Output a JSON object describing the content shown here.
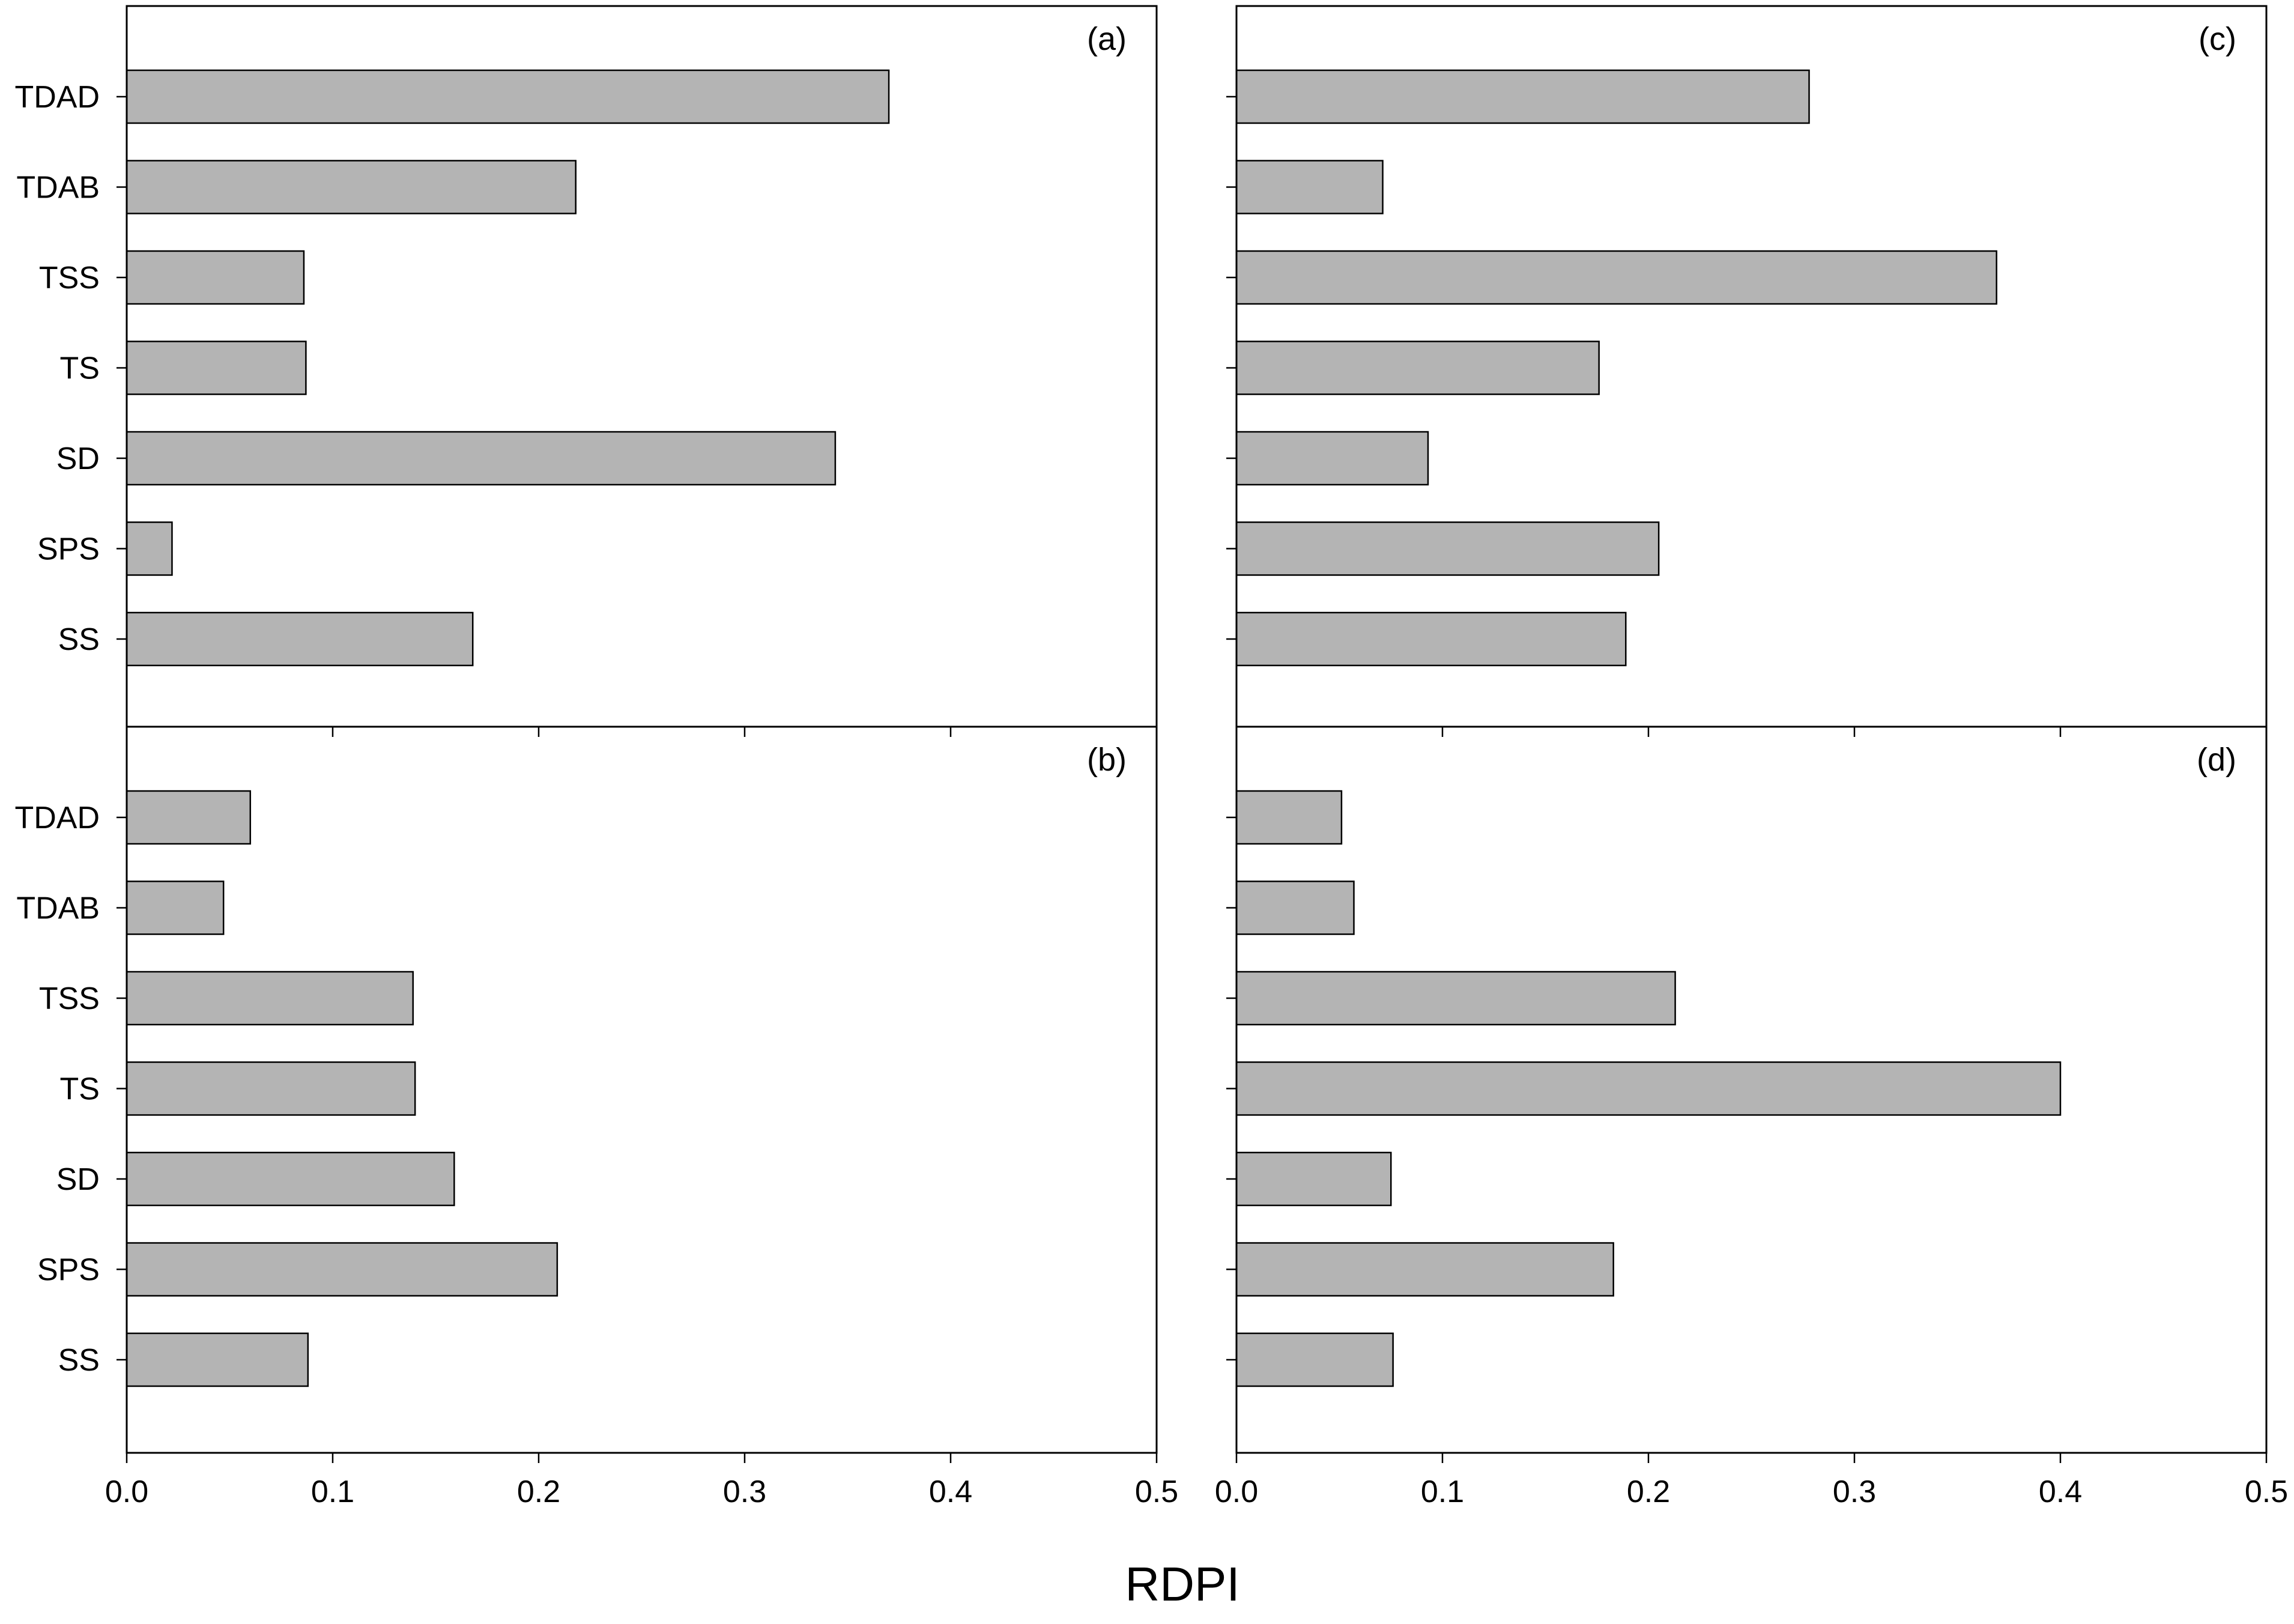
{
  "chart_data": {
    "type": "bar",
    "orientation": "horizontal",
    "xlabel": "RDPI",
    "xlim": [
      0,
      0.5
    ],
    "xticks": [
      "0.0",
      "0.1",
      "0.2",
      "0.3",
      "0.4",
      "0.5"
    ],
    "bar_color": "#b4b4b4",
    "grid": false,
    "panels": [
      {
        "label": "(a)",
        "position": "top-left",
        "categories": [
          "TDAD",
          "TDAB",
          "TSS",
          "TS",
          "SD",
          "SPS",
          "SS"
        ],
        "values": [
          0.37,
          0.218,
          0.086,
          0.087,
          0.344,
          0.022,
          0.168
        ]
      },
      {
        "label": "(c)",
        "position": "top-right",
        "categories": [
          "TDAD",
          "TDAB",
          "TSS",
          "TS",
          "SD",
          "SPS",
          "SS"
        ],
        "values": [
          0.278,
          0.071,
          0.369,
          0.176,
          0.093,
          0.205,
          0.189
        ]
      },
      {
        "label": "(b)",
        "position": "bottom-left",
        "categories": [
          "TDAD",
          "TDAB",
          "TSS",
          "TS",
          "SD",
          "SPS",
          "SS"
        ],
        "values": [
          0.06,
          0.047,
          0.139,
          0.14,
          0.159,
          0.209,
          0.088
        ]
      },
      {
        "label": "(d)",
        "position": "bottom-right",
        "categories": [
          "TDAD",
          "TDAB",
          "TSS",
          "TS",
          "SD",
          "SPS",
          "SS"
        ],
        "values": [
          0.051,
          0.057,
          0.213,
          0.4,
          0.075,
          0.183,
          0.076
        ]
      }
    ]
  }
}
